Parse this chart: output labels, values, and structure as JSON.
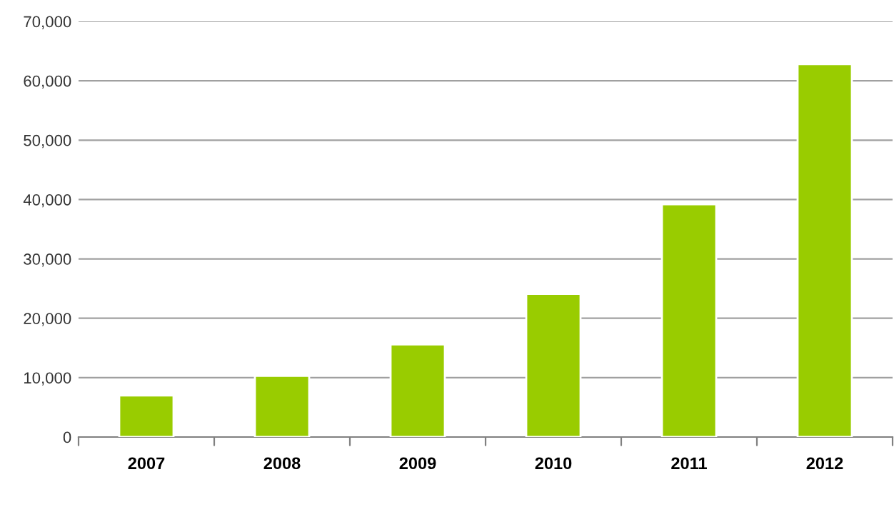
{
  "chart_data": {
    "type": "bar",
    "categories": [
      "2007",
      "2008",
      "2009",
      "2010",
      "2011",
      "2012"
    ],
    "values": [
      7000,
      10300,
      15600,
      24100,
      39200,
      62800
    ],
    "color": "#99cc00",
    "ylim": [
      0,
      70000
    ],
    "yticks": [
      {
        "value": 0,
        "label": "0"
      },
      {
        "value": 10000,
        "label": "10,000"
      },
      {
        "value": 20000,
        "label": "20,000"
      },
      {
        "value": 30000,
        "label": "30,000"
      },
      {
        "value": 40000,
        "label": "40,000"
      },
      {
        "value": 50000,
        "label": "50,000"
      },
      {
        "value": 60000,
        "label": "60,000"
      },
      {
        "value": 70000,
        "label": "70,000"
      }
    ],
    "grid": "y"
  }
}
